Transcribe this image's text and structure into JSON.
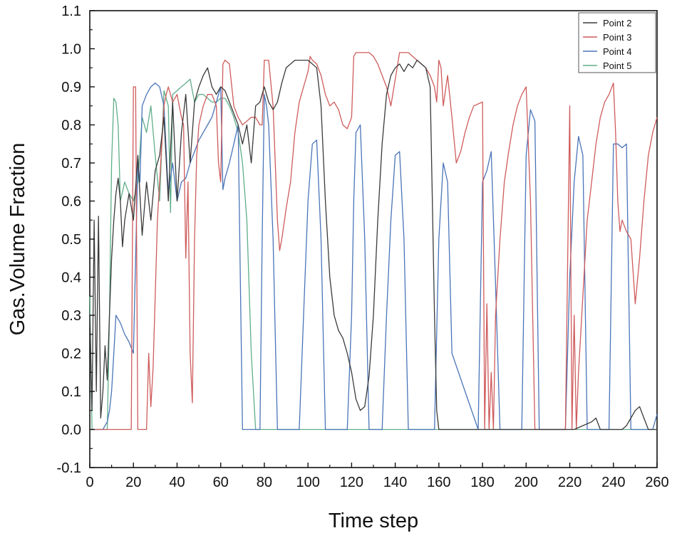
{
  "chart_data": {
    "type": "line",
    "title": "",
    "xlabel": "Time step",
    "ylabel": "Gas.Volume Fraction",
    "xlim": [
      0,
      260
    ],
    "ylim": [
      -0.1,
      1.1
    ],
    "xticks": [
      0,
      20,
      40,
      60,
      80,
      100,
      120,
      140,
      160,
      180,
      200,
      220,
      240,
      260
    ],
    "yticks": [
      -0.1,
      0.0,
      0.1,
      0.2,
      0.3,
      0.4,
      0.5,
      0.6,
      0.7,
      0.8,
      0.9,
      1.0,
      1.1
    ],
    "ytick_labels": [
      "-0.1",
      "0.0",
      "0.1",
      "0.2",
      "0.3",
      "0.4",
      "0.5",
      "0.6",
      "0.7",
      "0.8",
      "0.9",
      "1.0",
      "1.1"
    ],
    "legend_position": "top-right",
    "grid": false,
    "series": [
      {
        "name": "Point 2",
        "color": "#3a3a3a",
        "x": [
          0,
          1,
          2,
          3,
          4,
          5,
          6,
          7,
          8,
          9,
          10,
          11,
          12,
          13,
          14,
          15,
          16,
          18,
          20,
          22,
          24,
          26,
          28,
          30,
          32,
          34,
          36,
          38,
          40,
          42,
          44,
          46,
          48,
          50,
          52,
          54,
          56,
          58,
          60,
          62,
          64,
          66,
          68,
          70,
          72,
          74,
          76,
          78,
          80,
          82,
          84,
          86,
          88,
          90,
          92,
          94,
          96,
          98,
          100,
          102,
          104,
          106,
          108,
          110,
          112,
          114,
          116,
          118,
          120,
          122,
          124,
          126,
          128,
          130,
          132,
          134,
          136,
          138,
          140,
          142,
          144,
          146,
          148,
          150,
          152,
          154,
          156,
          157,
          158,
          159,
          160,
          170,
          180,
          200,
          222,
          226,
          230,
          232,
          234,
          244,
          246,
          248,
          250,
          252,
          254,
          256,
          258,
          260
        ],
        "y": [
          0.3,
          0.05,
          0.55,
          0.1,
          0.56,
          0.03,
          0.1,
          0.22,
          0.13,
          0.3,
          0.45,
          0.55,
          0.62,
          0.66,
          0.6,
          0.48,
          0.55,
          0.62,
          0.55,
          0.72,
          0.51,
          0.65,
          0.55,
          0.68,
          0.72,
          0.82,
          0.6,
          0.86,
          0.6,
          0.78,
          0.88,
          0.7,
          0.86,
          0.9,
          0.93,
          0.95,
          0.9,
          0.88,
          0.9,
          0.89,
          0.86,
          0.83,
          0.8,
          0.75,
          0.8,
          0.7,
          0.85,
          0.86,
          0.9,
          0.86,
          0.84,
          0.86,
          0.91,
          0.95,
          0.96,
          0.97,
          0.97,
          0.97,
          0.97,
          0.96,
          0.95,
          0.85,
          0.6,
          0.4,
          0.3,
          0.26,
          0.24,
          0.2,
          0.15,
          0.08,
          0.05,
          0.06,
          0.14,
          0.3,
          0.55,
          0.75,
          0.88,
          0.93,
          0.95,
          0.96,
          0.94,
          0.96,
          0.95,
          0.97,
          0.96,
          0.95,
          0.9,
          0.6,
          0.3,
          0.05,
          0.0,
          0.0,
          0.0,
          0.0,
          0.0,
          0.01,
          0.02,
          0.03,
          0.0,
          0.0,
          0.01,
          0.03,
          0.05,
          0.06,
          0.03,
          0.0,
          0.0,
          0.0
        ]
      },
      {
        "name": "Point 3",
        "color": "#cf5b5b",
        "x": [
          0,
          19,
          20,
          21,
          22,
          26,
          27,
          28,
          29,
          30,
          31,
          32,
          33,
          34,
          35,
          36,
          38,
          40,
          42,
          43,
          44,
          45,
          46,
          47,
          48,
          49,
          50,
          52,
          54,
          56,
          58,
          59,
          60,
          61,
          62,
          64,
          66,
          68,
          70,
          72,
          74,
          76,
          78,
          79,
          80,
          82,
          84,
          86,
          87,
          88,
          90,
          92,
          94,
          96,
          98,
          100,
          101,
          102,
          104,
          106,
          108,
          110,
          112,
          114,
          116,
          118,
          120,
          121,
          122,
          124,
          126,
          128,
          130,
          132,
          134,
          136,
          138,
          140,
          142,
          144,
          146,
          148,
          150,
          152,
          154,
          156,
          158,
          159,
          160,
          161,
          162,
          164,
          166,
          168,
          170,
          172,
          174,
          176,
          180,
          181,
          182,
          183,
          184,
          185,
          186,
          188,
          190,
          192,
          194,
          196,
          198,
          200,
          202,
          203,
          204,
          205,
          206,
          218,
          220,
          221,
          222,
          223,
          224,
          226,
          228,
          230,
          232,
          234,
          236,
          238,
          240,
          241,
          242,
          243,
          244,
          246,
          248,
          250,
          252,
          254,
          256,
          258,
          260
        ],
        "y": [
          0.0,
          0.0,
          0.9,
          0.9,
          0.0,
          0.0,
          0.2,
          0.06,
          0.16,
          0.35,
          0.55,
          0.65,
          0.75,
          0.85,
          0.88,
          0.9,
          0.86,
          0.88,
          0.82,
          0.8,
          0.45,
          0.65,
          0.2,
          0.07,
          0.5,
          0.72,
          0.8,
          0.85,
          0.88,
          0.88,
          0.85,
          0.7,
          0.65,
          0.96,
          0.97,
          0.96,
          0.85,
          0.82,
          0.8,
          0.81,
          0.82,
          0.82,
          0.8,
          0.8,
          0.97,
          0.97,
          0.85,
          0.55,
          0.47,
          0.5,
          0.58,
          0.65,
          0.78,
          0.86,
          0.9,
          0.94,
          0.98,
          0.97,
          0.96,
          0.93,
          0.88,
          0.85,
          0.86,
          0.84,
          0.8,
          0.79,
          0.82,
          0.98,
          0.99,
          0.99,
          0.99,
          0.99,
          0.98,
          0.96,
          0.93,
          0.9,
          0.85,
          0.92,
          0.99,
          0.99,
          0.99,
          0.98,
          0.97,
          0.96,
          0.95,
          0.93,
          0.9,
          0.86,
          0.97,
          0.95,
          0.85,
          0.93,
          0.82,
          0.7,
          0.73,
          0.78,
          0.82,
          0.85,
          0.86,
          0.0,
          0.33,
          0.0,
          0.15,
          0.0,
          0.3,
          0.5,
          0.65,
          0.73,
          0.8,
          0.85,
          0.88,
          0.9,
          0.6,
          0.3,
          0.0,
          0.0,
          0.0,
          0.0,
          0.85,
          0.0,
          0.3,
          0.0,
          0.15,
          0.35,
          0.55,
          0.65,
          0.75,
          0.82,
          0.86,
          0.88,
          0.91,
          0.78,
          0.6,
          0.52,
          0.55,
          0.52,
          0.5,
          0.33,
          0.45,
          0.6,
          0.72,
          0.78,
          0.82
        ]
      },
      {
        "name": "Point 4",
        "color": "#4a74b8",
        "x": [
          0,
          6,
          8,
          9,
          10,
          11,
          12,
          14,
          16,
          18,
          20,
          22,
          23,
          24,
          26,
          28,
          30,
          32,
          34,
          36,
          38,
          40,
          42,
          44,
          46,
          48,
          50,
          52,
          54,
          56,
          58,
          60,
          61,
          62,
          64,
          66,
          68,
          69,
          70,
          71,
          72,
          76,
          78,
          79,
          80,
          81,
          82,
          84,
          86,
          88,
          96,
          98,
          100,
          102,
          104,
          106,
          108,
          118,
          120,
          121,
          122,
          124,
          126,
          128,
          134,
          136,
          138,
          140,
          142,
          144,
          146,
          148,
          158,
          160,
          162,
          164,
          166,
          178,
          180,
          182,
          184,
          186,
          188,
          198,
          200,
          202,
          204,
          206,
          218,
          220,
          222,
          224,
          226,
          228,
          238,
          240,
          242,
          244,
          246,
          248,
          258,
          260
        ],
        "y": [
          0.0,
          0.0,
          0.02,
          0.05,
          0.1,
          0.2,
          0.3,
          0.28,
          0.25,
          0.23,
          0.2,
          0.7,
          0.65,
          0.85,
          0.88,
          0.9,
          0.91,
          0.9,
          0.85,
          0.62,
          0.7,
          0.6,
          0.65,
          0.66,
          0.7,
          0.73,
          0.76,
          0.78,
          0.8,
          0.82,
          0.86,
          0.9,
          0.63,
          0.66,
          0.7,
          0.75,
          0.8,
          0.4,
          0.0,
          0.0,
          0.0,
          0.0,
          0.0,
          0.5,
          0.88,
          0.85,
          0.8,
          0.5,
          0.0,
          0.0,
          0.0,
          0.3,
          0.6,
          0.75,
          0.76,
          0.5,
          0.0,
          0.0,
          0.3,
          0.6,
          0.78,
          0.8,
          0.5,
          0.0,
          0.0,
          0.3,
          0.55,
          0.72,
          0.73,
          0.5,
          0.0,
          0.0,
          0.0,
          0.5,
          0.7,
          0.65,
          0.2,
          0.0,
          0.65,
          0.68,
          0.73,
          0.38,
          0.0,
          0.0,
          0.72,
          0.84,
          0.81,
          0.0,
          0.0,
          0.4,
          0.65,
          0.77,
          0.72,
          0.0,
          0.0,
          0.75,
          0.75,
          0.74,
          0.75,
          0.0,
          0.0,
          0.04
        ]
      },
      {
        "name": "Point 5",
        "color": "#5fae8a",
        "x": [
          0,
          1,
          2,
          3,
          4,
          5,
          6,
          7,
          8,
          9,
          10,
          11,
          12,
          13,
          14,
          16,
          18,
          20,
          22,
          24,
          26,
          28,
          30,
          32,
          34,
          36,
          37,
          38,
          40,
          42,
          44,
          46,
          48,
          50,
          52,
          54,
          56,
          58,
          60,
          62,
          64,
          66,
          68,
          70,
          72,
          74,
          76,
          78,
          260
        ],
        "y": [
          0.35,
          0.0,
          0.0,
          0.0,
          0.0,
          0.0,
          0.0,
          0.0,
          0.0,
          0.3,
          0.7,
          0.87,
          0.86,
          0.8,
          0.6,
          0.65,
          0.62,
          0.6,
          0.65,
          0.82,
          0.78,
          0.85,
          0.72,
          0.6,
          0.89,
          0.85,
          0.57,
          0.88,
          0.89,
          0.9,
          0.91,
          0.92,
          0.86,
          0.88,
          0.88,
          0.87,
          0.86,
          0.86,
          0.87,
          0.87,
          0.85,
          0.82,
          0.78,
          0.7,
          0.55,
          0.2,
          0.0,
          0.0,
          0.0
        ]
      }
    ]
  }
}
